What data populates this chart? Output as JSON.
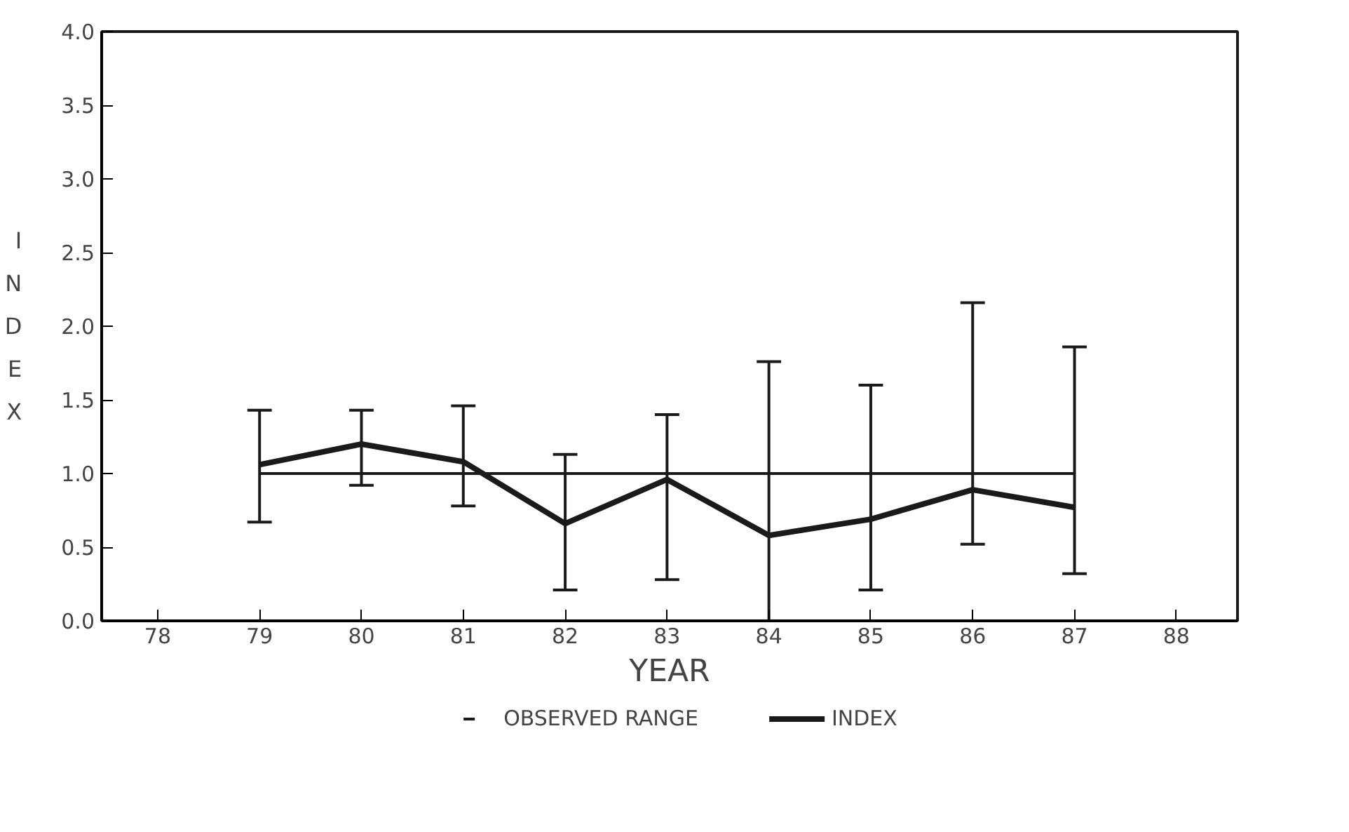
{
  "chart_data": {
    "type": "line",
    "xlabel": "YEAR",
    "ylabel": "INDEX",
    "x": [
      79,
      80,
      81,
      82,
      83,
      84,
      85,
      86,
      87
    ],
    "series": [
      {
        "name": "INDEX",
        "color": "#1a1a1a",
        "values": [
          1.06,
          1.2,
          1.08,
          0.66,
          0.96,
          0.58,
          0.69,
          0.89,
          0.77
        ],
        "errors": [
          [
            0.67,
            1.43
          ],
          [
            0.92,
            1.43
          ],
          [
            0.78,
            1.46
          ],
          [
            0.21,
            1.13
          ],
          [
            0.28,
            1.4
          ],
          [
            0.0,
            1.76
          ],
          [
            0.21,
            1.6
          ],
          [
            0.52,
            2.16
          ],
          [
            0.32,
            1.86
          ]
        ]
      },
      {
        "color": "#1a1a1a",
        "values": [
          1.0,
          1.0,
          1.0,
          1.0,
          1.0,
          1.0,
          1.0,
          1.0,
          1.0
        ]
      }
    ],
    "annotations": [
      "OBSERVED RANGE"
    ],
    "xlim": [
      77.45,
      88.6
    ],
    "xticks": [
      78,
      79,
      80,
      81,
      82,
      83,
      84,
      85,
      86,
      87,
      88
    ],
    "ylim": [
      0,
      4.0
    ],
    "yticks": [
      {
        "value": 0,
        "label": "0.0"
      },
      0.5,
      {
        "value": 1,
        "label": "1.0"
      },
      1.5,
      {
        "value": 2,
        "label": "2.0"
      },
      2.5,
      {
        "value": 3,
        "label": "3.0"
      },
      3.5,
      {
        "value": 4,
        "label": "4.0"
      }
    ],
    "grid": false,
    "legend": "bottom",
    "marker": "none",
    "line_style": "solid"
  }
}
